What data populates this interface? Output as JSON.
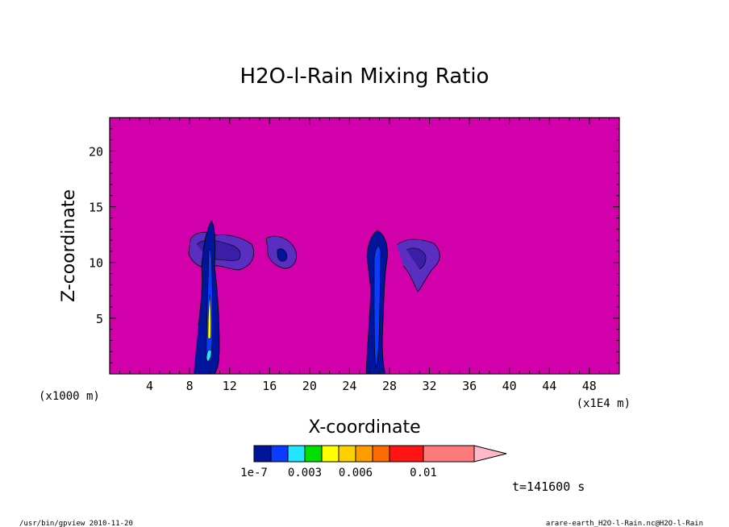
{
  "chart_data": {
    "type": "heatmap",
    "title": "H2O-l-Rain Mixing Ratio",
    "xlabel": "X-coordinate",
    "ylabel": "Z-coordinate",
    "x_unit": "(x1E4 m)",
    "y_unit": "(x1000 m)",
    "xlim": [
      0,
      51
    ],
    "ylim": [
      0,
      23
    ],
    "x_ticks": [
      4,
      8,
      12,
      16,
      20,
      24,
      28,
      32,
      36,
      40,
      44,
      48
    ],
    "y_ticks": [
      5,
      10,
      15,
      20
    ],
    "background_color": "#d200aa",
    "colorbar": {
      "colors": [
        "#00159b",
        "#0a3cff",
        "#22e6ff",
        "#00e000",
        "#ffff00",
        "#ffd000",
        "#ff9c00",
        "#ff6a00",
        "#ff1414",
        "#ff7a7a",
        "#ffb8c8"
      ],
      "tick_labels": [
        "1e-7",
        "0.003",
        "0.006",
        "0.01"
      ]
    },
    "features": [
      {
        "name": "plume-left",
        "x": [
          8.5,
          11
        ],
        "z": [
          0,
          13.5
        ]
      },
      {
        "name": "anvil-left",
        "x": [
          8,
          14.5
        ],
        "z": [
          9.5,
          12.5
        ]
      },
      {
        "name": "cell-left-mid",
        "x": [
          15.5,
          18.5
        ],
        "z": [
          9.2,
          12.3
        ]
      },
      {
        "name": "plume-right",
        "x": [
          25.5,
          28
        ],
        "z": [
          0,
          13
        ]
      },
      {
        "name": "cell-right",
        "x": [
          29,
          33
        ],
        "z": [
          7.2,
          11.8
        ]
      }
    ],
    "time_label": "t=141600 s"
  },
  "footer": {
    "left": "/usr/bin/gpview   2010-11-20",
    "right": "arare-earth_H2O-l-Rain.nc@H2O-l-Rain"
  }
}
